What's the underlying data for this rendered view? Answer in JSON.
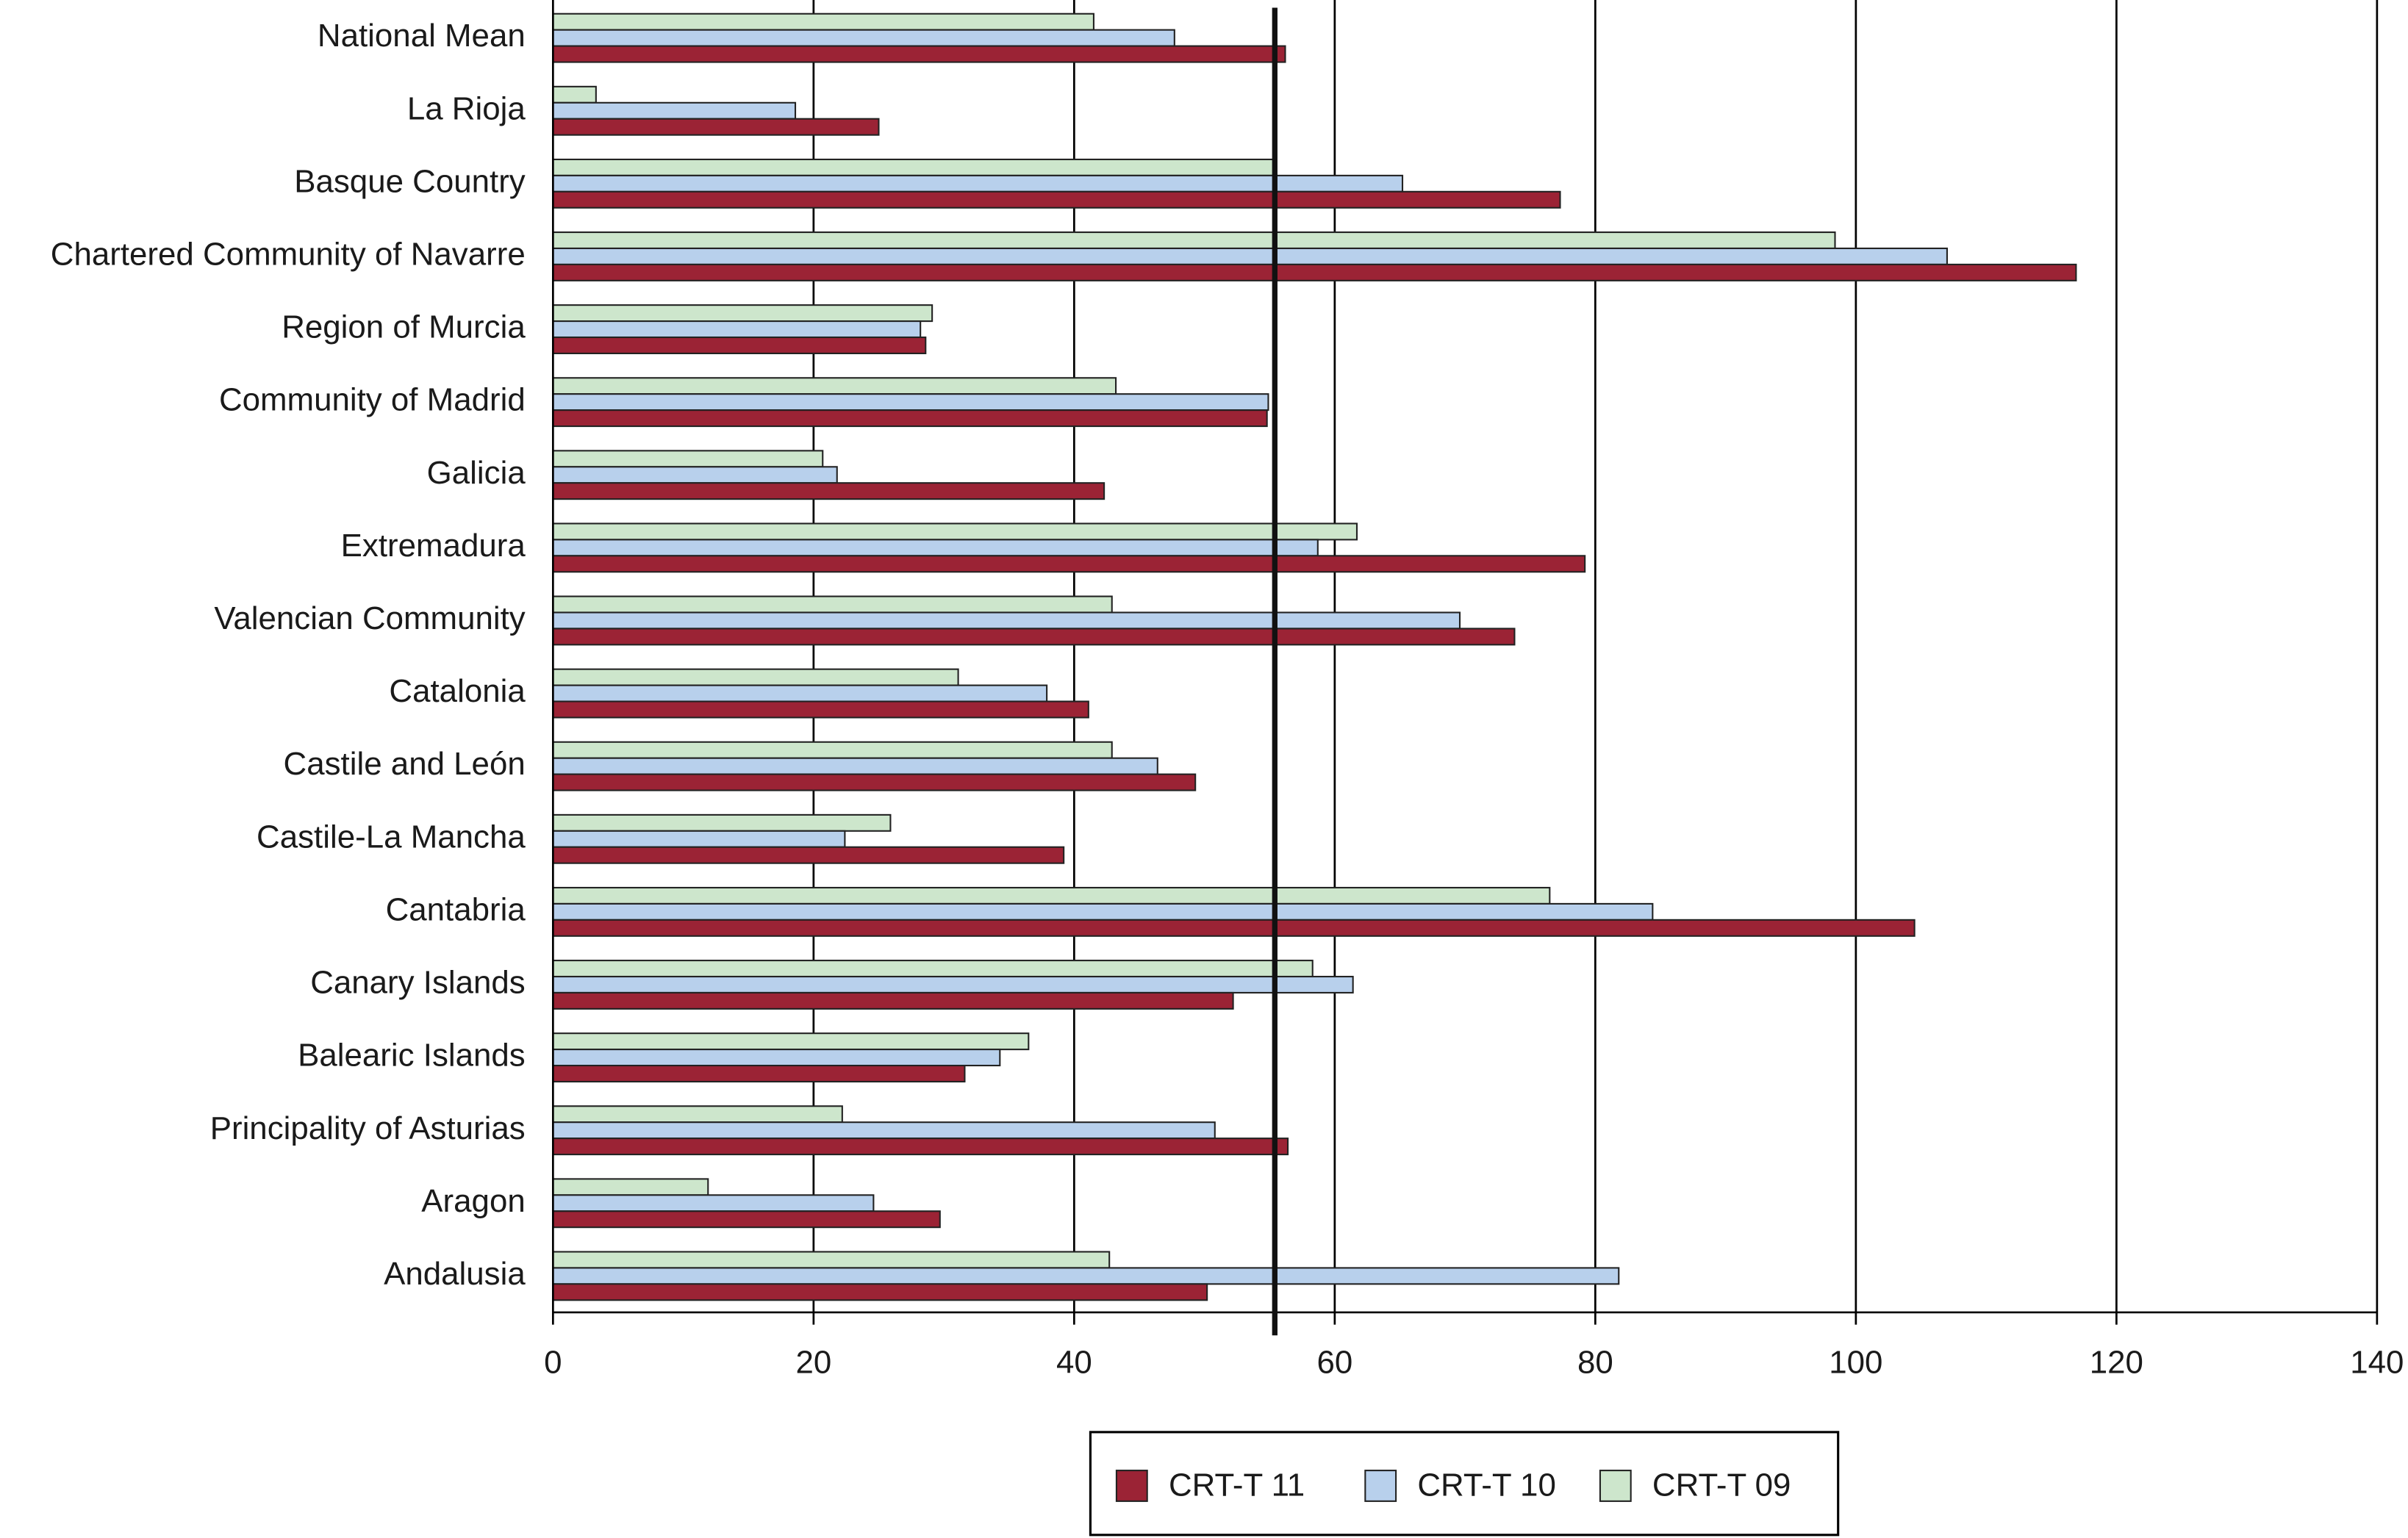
{
  "chart_data": {
    "type": "hbar",
    "categories": [
      "National Mean",
      "La Rioja",
      "Basque Country",
      "Chartered Community of Navarre",
      "Region of Murcia",
      "Community of Madrid",
      "Galicia",
      "Extremadura",
      "Valencian Community",
      "Catalonia",
      "Castile and León",
      "Castile-La Mancha",
      "Cantabria",
      "Canary Islands",
      "Balearic Islands",
      "Principality of Asturias",
      "Aragon",
      "Andalusia"
    ],
    "series": [
      {
        "name": "CRT-T 11",
        "color": "#9b2335",
        "values": [
          56.2,
          25.0,
          77.3,
          116.9,
          28.6,
          54.8,
          42.3,
          79.2,
          73.8,
          41.1,
          49.3,
          39.2,
          104.5,
          52.2,
          31.6,
          56.4,
          29.7,
          50.2
        ]
      },
      {
        "name": "CRT-T 10",
        "color": "#b8d0ec",
        "values": [
          47.7,
          18.6,
          65.2,
          107.0,
          28.2,
          54.9,
          21.8,
          58.7,
          69.6,
          37.9,
          46.4,
          22.4,
          84.4,
          61.4,
          34.3,
          50.8,
          24.6,
          81.8
        ]
      },
      {
        "name": "CRT-T 09",
        "color": "#cde6cc",
        "values": [
          41.5,
          3.3,
          55.3,
          98.4,
          29.1,
          43.2,
          20.7,
          61.7,
          42.9,
          31.1,
          42.9,
          25.9,
          76.5,
          58.3,
          36.5,
          22.2,
          11.9,
          42.7
        ]
      }
    ],
    "xlim": [
      0,
      140
    ],
    "xticks": [
      0,
      20,
      40,
      60,
      80,
      100,
      120,
      140
    ],
    "reference_line": 55.4,
    "grid": true,
    "legend": "bottom"
  }
}
